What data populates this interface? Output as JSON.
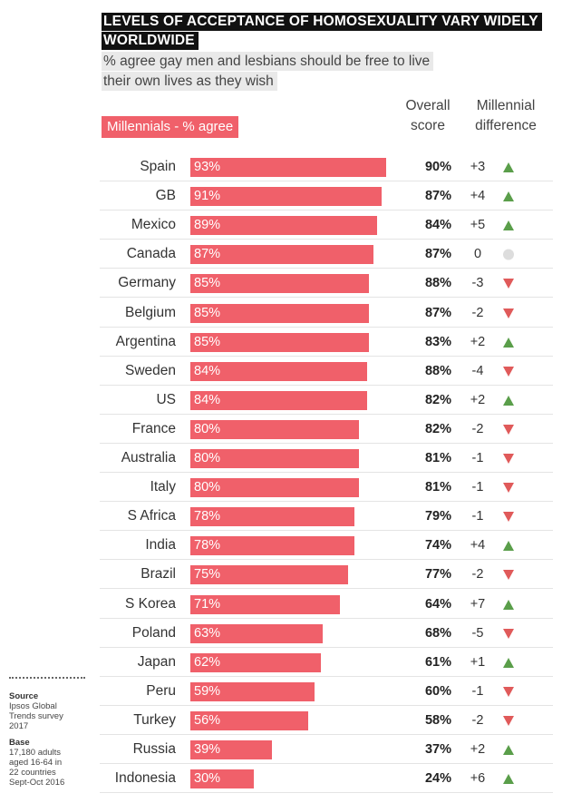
{
  "title_lines": [
    "LEVELS OF ACCEPTANCE OF HOMOSEXUALITY VARY WIDELY",
    "WORLDWIDE"
  ],
  "subtitle_lines": [
    "% agree gay men and lesbians should be free to live",
    "their own lives as they wish"
  ],
  "series_label": "Millennials - % agree",
  "col_overall": [
    "Overall",
    "score"
  ],
  "col_diff": [
    "Millennial",
    "difference"
  ],
  "colors": {
    "bar": "#f0606a",
    "up": "#5a9e4a",
    "down": "#e05a5a",
    "neutral": "#dddddd",
    "title_bg": "#111111"
  },
  "notes": {
    "source_head": "Source",
    "source_lines": [
      "Ipsos Global",
      "Trends survey",
      "2017"
    ],
    "base_head": "Base",
    "base_lines": [
      "17,180 adults",
      "aged 16-64 in",
      "22 countries",
      "Sept-Oct 2016"
    ]
  },
  "chart_data": {
    "type": "bar",
    "orientation": "horizontal",
    "title": "LEVELS OF ACCEPTANCE OF HOMOSEXUALITY VARY WIDELY WORLDWIDE",
    "subtitle": "% agree gay men and lesbians should be free to live their own lives as they wish",
    "xlim": [
      0,
      100
    ],
    "categories": [
      "Spain",
      "GB",
      "Mexico",
      "Canada",
      "Germany",
      "Belgium",
      "Argentina",
      "Sweden",
      "US",
      "France",
      "Australia",
      "Italy",
      "S Africa",
      "India",
      "Brazil",
      "S Korea",
      "Poland",
      "Japan",
      "Peru",
      "Turkey",
      "Russia",
      "Indonesia"
    ],
    "series": [
      {
        "name": "Millennials - % agree",
        "values": [
          93,
          91,
          89,
          87,
          85,
          85,
          85,
          84,
          84,
          80,
          80,
          80,
          78,
          78,
          75,
          71,
          63,
          62,
          59,
          56,
          39,
          30
        ],
        "labels": [
          "93%",
          "91%",
          "89%",
          "87%",
          "85%",
          "85%",
          "85%",
          "84%",
          "84%",
          "80%",
          "80%",
          "80%",
          "78%",
          "78%",
          "75%",
          "71%",
          "63%",
          "62%",
          "59%",
          "56%",
          "39%",
          "30%"
        ]
      }
    ],
    "overall": [
      "90%",
      "87%",
      "84%",
      "87%",
      "88%",
      "87%",
      "83%",
      "88%",
      "82%",
      "82%",
      "81%",
      "81%",
      "79%",
      "74%",
      "77%",
      "64%",
      "68%",
      "61%",
      "60%",
      "58%",
      "37%",
      "24%"
    ],
    "difference": [
      "+3",
      "+4",
      "+5",
      "0",
      "-3",
      "-2",
      "+2",
      "-4",
      "+2",
      "-2",
      "-1",
      "-1",
      "-1",
      "+4",
      "-2",
      "+7",
      "-5",
      "+1",
      "-1",
      "-2",
      "+2",
      "+6"
    ],
    "indicator": [
      "up",
      "up",
      "up",
      "neutral",
      "down",
      "down",
      "up",
      "down",
      "up",
      "down",
      "down",
      "down",
      "down",
      "up",
      "down",
      "up",
      "down",
      "up",
      "down",
      "down",
      "up",
      "up"
    ]
  }
}
